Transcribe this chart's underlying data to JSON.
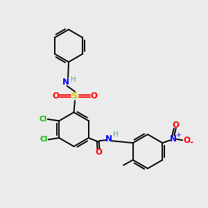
{
  "bg_color": "#ebebeb",
  "bond_color": "#000000",
  "atom_colors": {
    "N": "#0000ff",
    "H": "#5f9ea0",
    "O": "#ff0000",
    "S": "#cccc00",
    "Cl": "#00bb00",
    "C": "#000000"
  },
  "figsize": [
    3.0,
    3.0
  ],
  "dpi": 100
}
